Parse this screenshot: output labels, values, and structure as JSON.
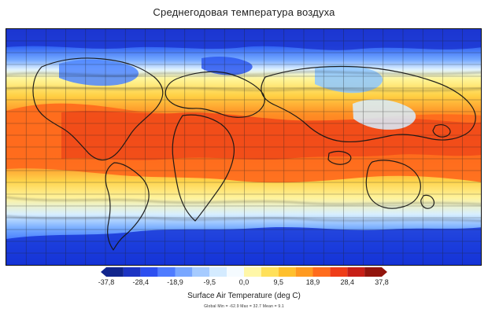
{
  "title": "Среднегодовая температура воздуха",
  "map": {
    "variable": "Surface Air Temperature",
    "projection": "equirectangular",
    "extent": {
      "lon": [
        -180,
        180
      ],
      "lat": [
        -90,
        90
      ]
    }
  },
  "colorbar": {
    "label": "Surface Air Temperature (deg C)",
    "ticks": [
      "-37,8",
      "-28,4",
      "-18,9",
      "-9,5",
      "0,0",
      "9,5",
      "18,9",
      "28,4",
      "37,8"
    ],
    "min": -37.8,
    "max": 37.8,
    "colors": [
      "#11258d",
      "#1d34c3",
      "#2d4ff0",
      "#4f7cff",
      "#79a7ff",
      "#a6cbff",
      "#d4ebff",
      "#f5fbff",
      "#fff7a8",
      "#ffe05a",
      "#ffc02d",
      "#ff9a21",
      "#ff6c1d",
      "#ef3d18",
      "#c71f17",
      "#92150d"
    ],
    "stats": "Global Min = -62.9  Max = 32.7  Mean = 9.1"
  }
}
